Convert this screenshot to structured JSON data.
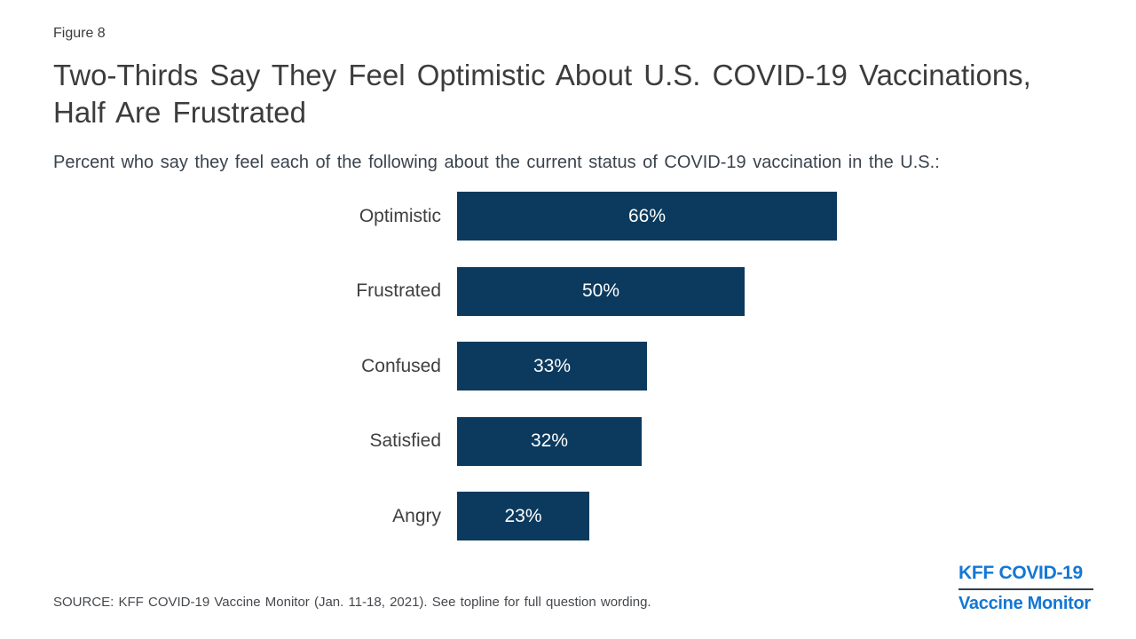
{
  "figure_label": "Figure 8",
  "title": "Two-Thirds Say They Feel Optimistic About U.S. COVID-19 Vaccinations, Half Are Frustrated",
  "subtitle": "Percent who say they feel each of the following about the current status of COVID-19 vaccination in the U.S.:",
  "source": "SOURCE: KFF COVID-19 Vaccine Monitor (Jan. 11-18, 2021). See topline for full question wording.",
  "logo": {
    "line1": "KFF COVID-19",
    "line2": "Vaccine Monitor"
  },
  "colors": {
    "bar": "#0b3a5e",
    "logo_blue": "#1377d4",
    "divider": "#333f49",
    "title_text": "#3c3c3c",
    "subtitle_text": "#3a434d",
    "label_text": "#3f3f3f",
    "value_text": "#ffffff",
    "source_text": "#45484d"
  },
  "chart_data": {
    "type": "bar",
    "orientation": "horizontal",
    "title": "Two-Thirds Say They Feel Optimistic About U.S. COVID-19 Vaccinations, Half Are Frustrated",
    "subtitle": "Percent who say they feel each of the following about the current status of COVID-19 vaccination in the U.S.:",
    "categories": [
      "Optimistic",
      "Frustrated",
      "Confused",
      "Satisfied",
      "Angry"
    ],
    "values": [
      66,
      50,
      33,
      32,
      23
    ],
    "value_labels": [
      "66%",
      "50%",
      "33%",
      "32%",
      "23%"
    ],
    "unit": "percent",
    "xlim": [
      0,
      100
    ],
    "grid": false,
    "legend": false,
    "data_labels_position": "inside-center"
  }
}
